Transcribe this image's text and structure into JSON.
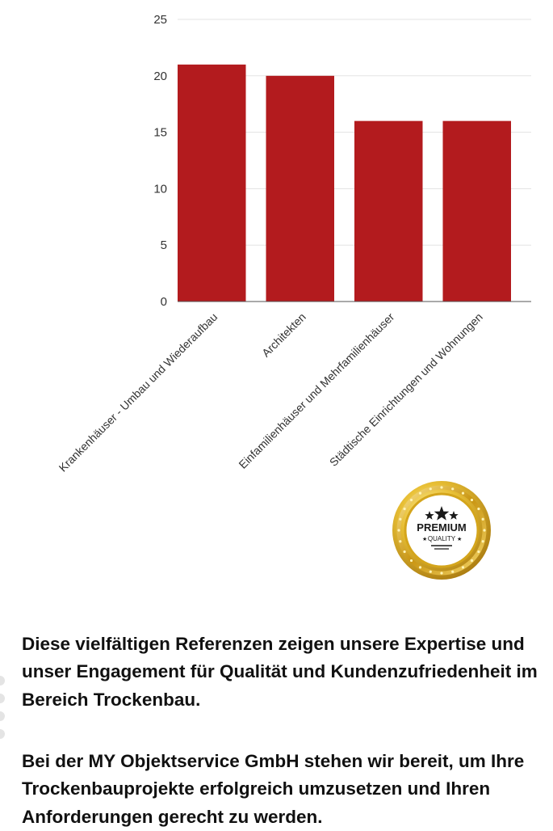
{
  "chart_data": {
    "type": "bar",
    "categories": [
      "Krankenhäuser - Umbau und Wiederaufbau",
      "Architekten",
      "Einfamilienhäuser und Mehrfamilienhäuser",
      "Städtische Einrichtungen und Wohnungen"
    ],
    "values": [
      21,
      20,
      16,
      16
    ],
    "title": "",
    "xlabel": "",
    "ylabel": "",
    "ylim": [
      0,
      25
    ],
    "yticks": [
      0,
      5,
      10,
      15,
      20,
      25
    ],
    "grid": true,
    "legend": "none",
    "bar_color": "#b31b1e"
  },
  "badge": {
    "word": "PREMIUM",
    "sub": "QUALITY",
    "gold_color": "#d9a81e"
  },
  "content": {
    "paragraph1": "Diese vielfältigen Referenzen zeigen unsere Expertise und unser Engagement für Qualität und Kundenzufriedenheit im Bereich Trockenbau.",
    "paragraph2": "Bei der MY Objektservice GmbH stehen wir bereit, um Ihre Trockenbauprojekte erfolgreich umzusetzen und Ihren Anforderungen gerecht zu werden."
  }
}
